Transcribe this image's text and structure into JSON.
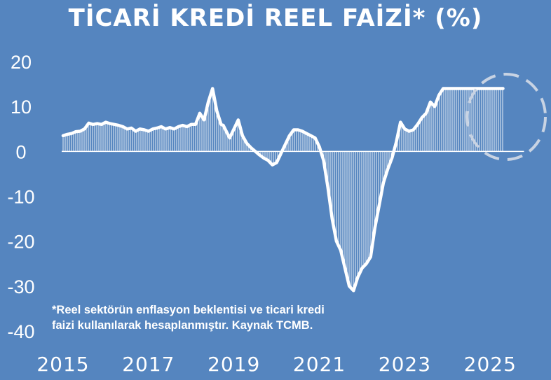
{
  "title": "TİCARİ KREDİ REEL FAİZİ* (%)",
  "footnote": {
    "line1": "*Reel sektörün enflasyon beklentisi ve ticari kredi",
    "line2": "faizi kullanılarak hesaplanmıştır. Kaynak TCMB."
  },
  "colors": {
    "background": "#5585bf",
    "line": "#ffffff",
    "highlight_circle": "#c8d3e3"
  },
  "chart_data": {
    "type": "area",
    "title": "TİCARİ KREDİ REEL FAİZİ* (%)",
    "xlabel": "",
    "ylabel": "",
    "xlim": [
      2015.0,
      2025.8
    ],
    "ylim": [
      -40,
      20
    ],
    "x_ticks": [
      2015,
      2017,
      2019,
      2021,
      2023,
      2025
    ],
    "x_tick_labels": [
      "2015",
      "2017",
      "2019",
      "2021",
      "2023",
      "2025"
    ],
    "y_ticks": [
      20,
      10,
      0,
      -10,
      -20,
      -30,
      -40
    ],
    "y_tick_labels": [
      "20",
      "10",
      "0",
      "-10",
      "-20",
      "-30",
      "-40"
    ],
    "grid": false,
    "legend": "none",
    "highlight": "dashed circle around 2024.5–2025.4",
    "series": [
      {
        "x": [
          2015.0,
          2015.1,
          2015.2,
          2015.3,
          2015.4,
          2015.5,
          2015.6,
          2015.7,
          2015.8,
          2015.9,
          2016.0,
          2016.1,
          2016.2,
          2016.3,
          2016.4,
          2016.5,
          2016.6,
          2016.7,
          2016.8,
          2016.9,
          2017.0,
          2017.1,
          2017.2,
          2017.3,
          2017.4,
          2017.5,
          2017.6,
          2017.7,
          2017.8,
          2017.9,
          2018.0,
          2018.1,
          2018.2,
          2018.3,
          2018.4,
          2018.5,
          2018.6,
          2018.7,
          2018.75,
          2018.82,
          2018.9,
          2019.0,
          2019.1,
          2019.2,
          2019.3,
          2019.4,
          2019.5,
          2019.6,
          2019.7,
          2019.8,
          2019.9,
          2020.0,
          2020.1,
          2020.2,
          2020.3,
          2020.4,
          2020.5,
          2020.6,
          2020.7,
          2020.8,
          2020.9,
          2021.0,
          2021.1,
          2021.2,
          2021.3,
          2021.4,
          2021.5,
          2021.6,
          2021.7,
          2021.8,
          2021.9,
          2022.0,
          2022.1,
          2022.2,
          2022.3,
          2022.4,
          2022.5,
          2022.6,
          2022.7,
          2022.8,
          2022.9,
          2023.0,
          2023.1,
          2023.2,
          2023.3,
          2023.4,
          2023.5,
          2023.6,
          2023.7,
          2023.8,
          2023.9,
          2024.0,
          2024.1,
          2024.2,
          2024.3,
          2024.4,
          2024.5,
          2024.6,
          2024.7,
          2024.8,
          2024.9,
          2025.0,
          2025.1,
          2025.2,
          2025.3
        ],
        "y": [
          3.5,
          3.8,
          4.0,
          4.4,
          4.5,
          5.0,
          6.3,
          6.0,
          6.2,
          6.0,
          6.5,
          6.2,
          6.0,
          5.8,
          5.5,
          5.0,
          5.2,
          4.5,
          5.0,
          4.8,
          4.5,
          5.0,
          5.2,
          5.5,
          5.0,
          5.3,
          5.0,
          5.5,
          5.8,
          5.5,
          6.0,
          6.0,
          8.5,
          7.0,
          11.0,
          14.0,
          9.0,
          6.0,
          5.8,
          4.5,
          3.0,
          5.0,
          7.0,
          3.5,
          1.8,
          0.8,
          0.0,
          -0.8,
          -1.5,
          -2.0,
          -3.0,
          -2.5,
          -0.5,
          1.5,
          3.5,
          4.8,
          4.8,
          4.5,
          4.0,
          3.5,
          3.0,
          1.0,
          -2.0,
          -8.0,
          -15.0,
          -20.0,
          -22.0,
          -26.0,
          -30.0,
          -31.0,
          -28.0,
          -26.0,
          -25.0,
          -23.5,
          -17.0,
          -12.0,
          -7.0,
          -4.0,
          -1.5,
          2.0,
          6.5,
          5.0,
          4.5,
          4.8,
          6.0,
          7.5,
          8.5,
          11.0,
          10.0,
          12.5,
          14.0,
          14.0,
          14.0,
          14.0,
          14.0,
          14.0,
          14.0,
          14.0,
          14.0,
          14.0,
          14.0,
          14.0,
          14.0,
          14.0,
          14.0
        ]
      }
    ]
  }
}
